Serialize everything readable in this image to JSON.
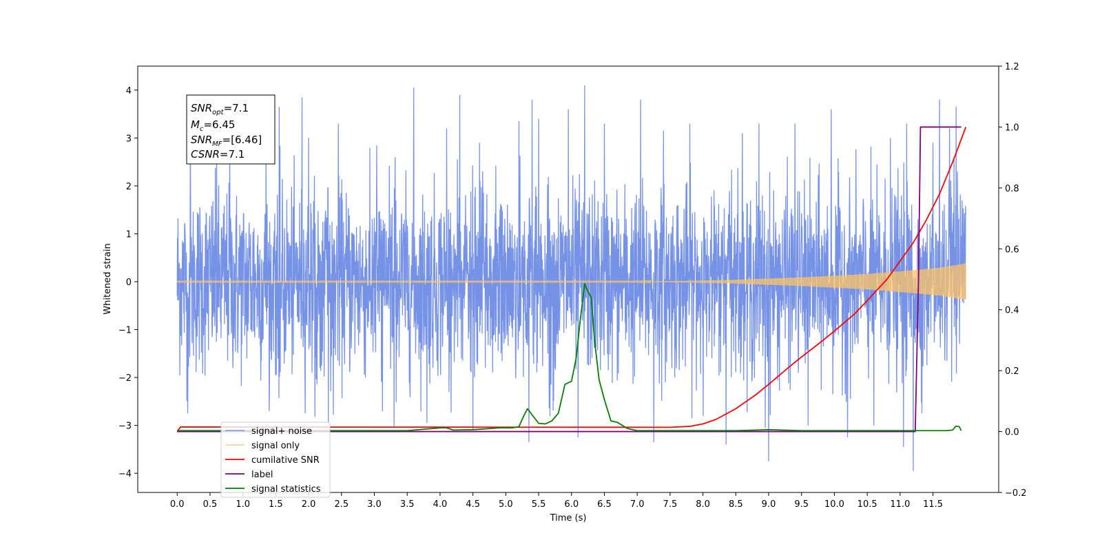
{
  "chart_data": {
    "type": "line",
    "xlabel": "Time (s)",
    "ylabel": "Whitened strain",
    "xlim": [
      -0.6,
      12.5
    ],
    "ylim": [
      -4.4,
      4.5
    ],
    "y2lim": [
      -0.2,
      1.2
    ],
    "xticks": [
      "0.0",
      "0.5",
      "1.0",
      "1.5",
      "2.0",
      "2.5",
      "3.0",
      "3.5",
      "4.0",
      "4.5",
      "5.0",
      "5.5",
      "6.0",
      "6.5",
      "7.0",
      "7.5",
      "8.0",
      "8.5",
      "9.0",
      "9.5",
      "10.0",
      "10.5",
      "11.0",
      "11.5"
    ],
    "yticks": [
      "4",
      "3",
      "2",
      "1",
      "0",
      "−1",
      "−2",
      "−3",
      "−4"
    ],
    "y2ticks": [
      "1.2",
      "1.0",
      "0.8",
      "0.6",
      "0.4",
      "0.2",
      "0.0",
      "−0.2"
    ],
    "legend": {
      "placement": "lower-left",
      "entries": [
        {
          "label": "signal+ noise",
          "color": "#6a89e4"
        },
        {
          "label": "signal only",
          "color": "#ffc366"
        },
        {
          "label": "cumilative SNR",
          "color": "#ff0000"
        },
        {
          "label": "label",
          "color": "#800080"
        },
        {
          "label": "signal statistics",
          "color": "#008000"
        }
      ]
    },
    "annotation": {
      "snr_opt": {
        "name": "SNR",
        "sub": "opt",
        "value": "=7.1"
      },
      "mc": {
        "name": "M",
        "sub": "c",
        "value": "=6.45"
      },
      "snr_mf": {
        "name": "SNR",
        "sub": "MF",
        "value": "=[6.46]"
      },
      "csnr": {
        "name": "CSNR",
        "value": "=7.1"
      }
    },
    "series": [
      {
        "name": "signal+ noise",
        "axis": "left",
        "color": "#6a89e4",
        "t_range": [
          0.0,
          12.0
        ],
        "noise_sigma": 0.95,
        "peaks": [
          [
            0.16,
            -2.75
          ],
          [
            0.2,
            2.95
          ],
          [
            0.6,
            3.2
          ],
          [
            0.8,
            2.9
          ],
          [
            1.35,
            3.1
          ],
          [
            1.55,
            3.65
          ],
          [
            1.9,
            3.85
          ],
          [
            2.0,
            3.0
          ],
          [
            2.3,
            -2.95
          ],
          [
            2.45,
            3.3
          ],
          [
            3.3,
            -3.05
          ],
          [
            3.6,
            4.05
          ],
          [
            3.8,
            -2.95
          ],
          [
            4.1,
            3.2
          ],
          [
            4.3,
            3.9
          ],
          [
            4.5,
            -3.1
          ],
          [
            4.6,
            2.9
          ],
          [
            5.2,
            3.35
          ],
          [
            5.35,
            -3.35
          ],
          [
            5.4,
            3.8
          ],
          [
            5.5,
            3.4
          ],
          [
            5.95,
            3.6
          ],
          [
            6.1,
            -3.25
          ],
          [
            6.2,
            4.1
          ],
          [
            6.5,
            3.3
          ],
          [
            7.05,
            3.8
          ],
          [
            7.25,
            -3.35
          ],
          [
            7.4,
            3.15
          ],
          [
            7.8,
            3.3
          ],
          [
            8.35,
            -3.4
          ],
          [
            8.6,
            3.1
          ],
          [
            8.85,
            3.3
          ],
          [
            8.95,
            -3.05
          ],
          [
            9.0,
            -3.75
          ],
          [
            9.4,
            3.3
          ],
          [
            9.6,
            -3.0
          ],
          [
            9.95,
            3.6
          ],
          [
            10.2,
            -3.25
          ],
          [
            10.6,
            -3.0
          ],
          [
            10.85,
            3.0
          ],
          [
            11.05,
            -3.45
          ],
          [
            11.1,
            3.3
          ],
          [
            11.2,
            -3.95
          ],
          [
            11.5,
            2.9
          ],
          [
            11.6,
            3.8
          ],
          [
            11.75,
            3.2
          ],
          [
            11.85,
            3.65
          ]
        ]
      },
      {
        "name": "signal only",
        "axis": "left",
        "color": "#ffc366",
        "t_range": [
          0.0,
          12.0
        ],
        "envelope": [
          [
            0.0,
            0.005
          ],
          [
            7.0,
            0.005
          ],
          [
            7.7,
            0.015
          ],
          [
            8.5,
            0.04
          ],
          [
            9.5,
            0.09
          ],
          [
            10.5,
            0.16
          ],
          [
            11.2,
            0.24
          ],
          [
            11.6,
            0.29
          ],
          [
            12.0,
            0.38
          ]
        ]
      },
      {
        "name": "cumilative SNR",
        "axis": "right",
        "color": "#ff0000",
        "x": [
          0.0,
          0.05,
          7.5,
          7.8,
          8.0,
          8.2,
          8.5,
          8.8,
          9.0,
          9.3,
          9.5,
          9.8,
          10.0,
          10.3,
          10.5,
          10.8,
          11.0,
          11.2,
          11.4,
          11.6,
          11.8,
          12.0
        ],
        "y": [
          0.0,
          0.015,
          0.014,
          0.017,
          0.025,
          0.04,
          0.075,
          0.12,
          0.155,
          0.21,
          0.245,
          0.295,
          0.33,
          0.385,
          0.43,
          0.5,
          0.56,
          0.62,
          0.695,
          0.78,
          0.885,
          1.0
        ]
      },
      {
        "name": "label",
        "axis": "right",
        "color": "#800080",
        "x": [
          0.0,
          11.23,
          11.28,
          11.31,
          11.93
        ],
        "y": [
          0.0,
          0.0,
          0.5,
          1.0,
          1.0
        ]
      },
      {
        "name": "signal statistics",
        "axis": "right",
        "color": "#008000",
        "x": [
          0.0,
          3.5,
          4.0,
          4.1,
          4.2,
          4.5,
          4.9,
          5.1,
          5.2,
          5.27,
          5.33,
          5.4,
          5.5,
          5.6,
          5.7,
          5.8,
          5.9,
          6.0,
          6.07,
          6.13,
          6.2,
          6.25,
          6.3,
          6.35,
          6.42,
          6.5,
          6.6,
          6.7,
          6.85,
          7.0,
          8.5,
          9.0,
          9.5,
          11.5,
          11.7,
          11.8,
          11.85,
          11.9,
          11.93
        ],
        "y": [
          0.003,
          0.003,
          0.012,
          0.012,
          0.005,
          0.006,
          0.012,
          0.012,
          0.016,
          0.05,
          0.075,
          0.055,
          0.027,
          0.025,
          0.035,
          0.06,
          0.155,
          0.165,
          0.24,
          0.36,
          0.485,
          0.46,
          0.44,
          0.3,
          0.17,
          0.105,
          0.035,
          0.03,
          0.01,
          0.003,
          0.003,
          0.006,
          0.003,
          0.003,
          0.003,
          0.005,
          0.018,
          0.016,
          0.003
        ]
      }
    ]
  }
}
